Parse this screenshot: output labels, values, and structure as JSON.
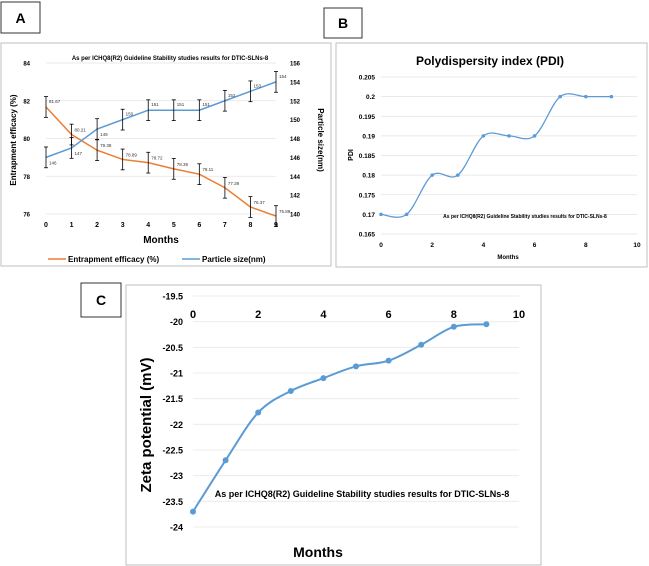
{
  "panels": {
    "a_label": "A",
    "b_label": "B",
    "c_label": "C"
  },
  "chart_data": [
    {
      "id": "A",
      "type": "line",
      "title": "As per ICHQ8(R2) Guideline Stability studies results for DTIC-SLNs-8",
      "xlabel": "Months",
      "ylabel": "Entrapment efficacy (%)",
      "y2label": "Particle size(nm)",
      "x": [
        0,
        1,
        2,
        3,
        4,
        5,
        6,
        7,
        8,
        9
      ],
      "xlim": [
        0,
        9
      ],
      "ylim": [
        76,
        84
      ],
      "y2lim": [
        140,
        156
      ],
      "yticks": [
        76,
        78,
        80,
        82,
        84
      ],
      "y2ticks": [
        140,
        142,
        144,
        146,
        148,
        150,
        152,
        154,
        156
      ],
      "series": [
        {
          "name": "Entrapment efficacy (%)",
          "axis": "left",
          "color": "#ED7D31",
          "values": [
            81.67,
            80.21,
            79.38,
            78.89,
            78.72,
            78.39,
            78.11,
            77.39,
            76.37,
            75.89
          ],
          "labels": [
            "81.67",
            "80.21",
            "79.38",
            "78.89",
            "78.72",
            "78.39",
            "78.11",
            "77.39",
            "76.37",
            "75.89"
          ],
          "error": 0.55
        },
        {
          "name": "Particle size(nm)",
          "axis": "right",
          "color": "#5B9BD5",
          "values": [
            146,
            147,
            149,
            150,
            151,
            151,
            151,
            152,
            153,
            154
          ],
          "labels": [
            "146",
            "147",
            "149",
            "150",
            "151",
            "151",
            "151",
            "152",
            "153",
            "154"
          ],
          "error": 1.1
        }
      ],
      "legend": "bottom"
    },
    {
      "id": "B",
      "type": "scatter",
      "title": "Polydispersity index (PDI)",
      "annotation": "As per ICHQ8(R2) Guideline Stability studies results for DTIC-SLNs-8",
      "xlabel": "Months",
      "ylabel": "PDI",
      "x": [
        0,
        1,
        2,
        3,
        4,
        5,
        6,
        7,
        8,
        9
      ],
      "values": [
        0.17,
        0.17,
        0.18,
        0.18,
        0.19,
        0.19,
        0.19,
        0.2,
        0.2,
        0.2
      ],
      "xlim": [
        0,
        10
      ],
      "ylim": [
        0.165,
        0.205
      ],
      "xticks": [
        "0",
        "2",
        "4",
        "6",
        "8",
        "10"
      ],
      "yticks": [
        "0.165",
        "0.17",
        "0.175",
        "0.18",
        "0.185",
        "0.19",
        "0.195",
        "0.2",
        "0.205"
      ],
      "color": "#5B9BD5"
    },
    {
      "id": "C",
      "type": "scatter",
      "annotation": "As per ICHQ8(R2) Guideline Stability studies results for DTIC-SLNs-8",
      "xlabel": "Months",
      "ylabel": "Zeta potential (mV)",
      "x": [
        0,
        1,
        2,
        3,
        4,
        5,
        6,
        7,
        8,
        9
      ],
      "values": [
        -23.7,
        -22.7,
        -21.77,
        -21.35,
        -21.1,
        -20.87,
        -20.76,
        -20.45,
        -20.1,
        -20.05
      ],
      "xlim": [
        0,
        10
      ],
      "ylim": [
        -24,
        -19.5
      ],
      "xticks": [
        "0",
        "2",
        "4",
        "6",
        "8",
        "10"
      ],
      "yticks": [
        "-19.5",
        "-20",
        "-20.5",
        "-21",
        "-21.5",
        "-22",
        "-22.5",
        "-23",
        "-23.5",
        "-24"
      ],
      "color": "#5B9BD5"
    }
  ]
}
